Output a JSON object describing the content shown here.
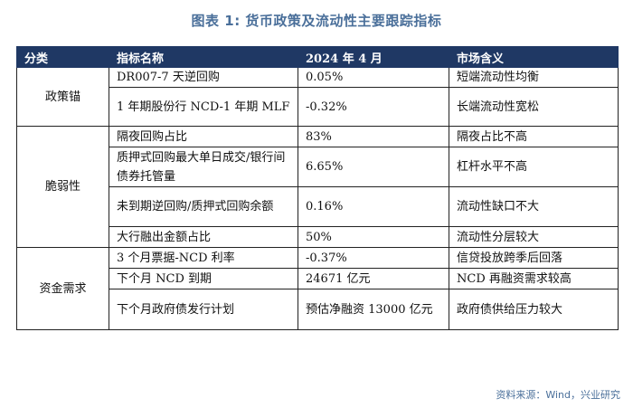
{
  "title": "图表 1:  货币政策及流动性主要跟踪指标",
  "headers": [
    "分类",
    "指标名称",
    "2024 年 4 月",
    "市场含义"
  ],
  "groups": [
    {
      "label": "政策锚"
    },
    {
      "label": "脆弱性"
    },
    {
      "label": "资金需求"
    }
  ],
  "rows": [
    {
      "indicator": "DR007-7 天逆回购",
      "value": "0.05%",
      "meaning": "短端流动性均衡"
    },
    {
      "indicator": "1 年期股份行 NCD-1 年期 MLF",
      "value": "-0.32%",
      "meaning": "长端流动性宽松"
    },
    {
      "indicator": "隔夜回购占比",
      "value": "83%",
      "meaning": "隔夜占比不高"
    },
    {
      "indicator": "质押式回购最大单日成交/银行间债券托管量",
      "value": "6.65%",
      "meaning": "杠杆水平不高"
    },
    {
      "indicator": "未到期逆回购/质押式回购余额",
      "value": "0.16%",
      "meaning": "流动性缺口不大"
    },
    {
      "indicator": "大行融出金额占比",
      "value": "50%",
      "meaning": "流动性分层较大"
    },
    {
      "indicator": "3 个月票据-NCD 利率",
      "value": "-0.37%",
      "meaning": "信贷投放跨季后回落"
    },
    {
      "indicator": "下个月 NCD 到期",
      "value": "24671 亿元",
      "meaning": "NCD 再融资需求较高"
    },
    {
      "indicator": "下个月政府债发行计划",
      "value": "预估净融资 13000 亿元",
      "meaning": "政府债供给压力较大"
    }
  ],
  "source": "资料来源：Wind，兴业研究"
}
